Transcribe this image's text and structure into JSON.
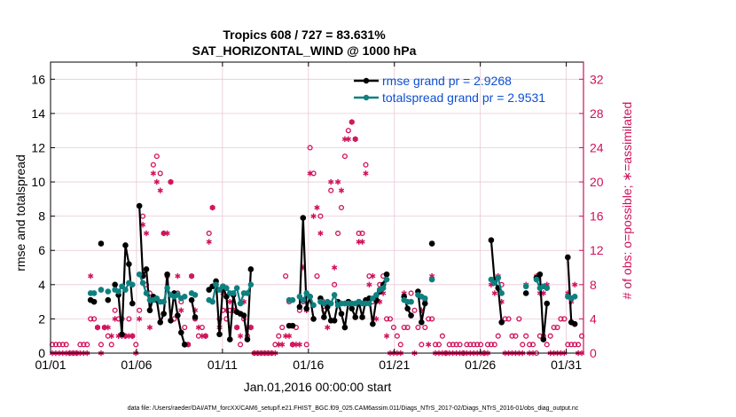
{
  "chart_data": {
    "type": "line",
    "title": "Tropics 608 / 727 = 83.631%",
    "subtitle": "SAT_HORIZONTAL_WIND @ 1000 hPa",
    "xlabel": "Jan.01,2016 00:00:00 start",
    "ylabel": "rmse and totalspread",
    "y2label": "# of obs: o=possible; ∗=assimilated",
    "footer": "data file: /Users/raeder/DAI/ATM_forcXX/CAM6_setup/f.e21.FHIST_BGC.f09_025.CAM6assim.011/Diags_NTrS_2017-02/Diags_NTrS_2016-01/obs_diag_output.nc",
    "x_range": [
      0,
      31
    ],
    "ylim": [
      0,
      17
    ],
    "y2lim": [
      0,
      34
    ],
    "x_ticks": [
      0,
      5,
      10,
      15,
      20,
      25,
      30
    ],
    "x_tick_labels": [
      "01/01",
      "01/06",
      "01/11",
      "01/16",
      "01/21",
      "01/26",
      "01/31"
    ],
    "y_ticks": [
      0,
      2,
      4,
      6,
      8,
      10,
      12,
      14,
      16
    ],
    "y2_ticks": [
      0,
      4,
      8,
      12,
      16,
      20,
      24,
      28,
      32
    ],
    "grid": true,
    "legend_position": "top-right",
    "colors": {
      "rmse": "#000000",
      "spread": "#0f8080",
      "obs": "#d0105a",
      "legend_text": "#0d4fd1",
      "grid": "#e8c8d8"
    },
    "series": [
      {
        "name": "rmse grand pr = 2.9268",
        "key": "rmse",
        "values": [
          null,
          null,
          null,
          null,
          null,
          null,
          null,
          null,
          null,
          null,
          null,
          3.1,
          3.0,
          null,
          6.4,
          null,
          3.1,
          null,
          4.0,
          3.4,
          1.1,
          6.3,
          5.2,
          2.9,
          null,
          8.6,
          4.5,
          4.9,
          2.5,
          3.3,
          3.1,
          1.8,
          2.3,
          4.6,
          1.9,
          3.5,
          2.2,
          1.2,
          0.5,
          null,
          3.1,
          2.1,
          null,
          null,
          null,
          3.7,
          3.9,
          4.2,
          1.1,
          3.9,
          3.3,
          0.8,
          3.4,
          2.4,
          2.3,
          2.2,
          0.8,
          4.9,
          null,
          null,
          null,
          null,
          null,
          null,
          null,
          null,
          null,
          null,
          1.6,
          1.6,
          null,
          2.7,
          7.9,
          2.6,
          3.3,
          2.0,
          null,
          3.2,
          2.1,
          2.7,
          1.9,
          1.9,
          3.0,
          2.3,
          1.5,
          3.0,
          2.6,
          2.1,
          3.0,
          2.1,
          3.1,
          3.2,
          1.7,
          3.1,
          3.6,
          4.0,
          4.6,
          null,
          null,
          null,
          null,
          3.3,
          2.6,
          2.2,
          null,
          3.6,
          1.8,
          2.9,
          null,
          6.4,
          null,
          null,
          null,
          null,
          null,
          null,
          null,
          null,
          null,
          null,
          null,
          null,
          null,
          null,
          null,
          null,
          6.6,
          4.2,
          3.8,
          1.8,
          null,
          null,
          null,
          null,
          null,
          null,
          3.5,
          null,
          null,
          4.4,
          4.6,
          0.8,
          2.9,
          null,
          null,
          null,
          null,
          null,
          5.6,
          1.8,
          1.7,
          null,
          null
        ]
      },
      {
        "name": "totalspread grand pr = 2.9531",
        "key": "spread",
        "values": [
          null,
          null,
          null,
          null,
          null,
          null,
          null,
          null,
          null,
          null,
          null,
          3.5,
          3.5,
          null,
          3.7,
          null,
          3.6,
          null,
          3.7,
          3.6,
          3.9,
          3.7,
          4.1,
          4.0,
          null,
          4.6,
          4.1,
          3.5,
          3.1,
          3.1,
          3.2,
          3.0,
          3.0,
          3.8,
          3.4,
          3.3,
          3.4,
          3.2,
          3.3,
          null,
          3.5,
          3.4,
          null,
          null,
          null,
          3.1,
          3.0,
          4.0,
          3.7,
          3.9,
          3.8,
          3.5,
          3.5,
          3.8,
          2.9,
          3.5,
          3.5,
          4.0,
          null,
          null,
          null,
          null,
          null,
          null,
          null,
          null,
          null,
          null,
          3.1,
          3.1,
          null,
          3.3,
          3.1,
          3.5,
          3.3,
          2.8,
          null,
          3.0,
          2.9,
          3.0,
          2.9,
          3.4,
          2.8,
          2.9,
          2.9,
          2.9,
          2.9,
          2.9,
          3.0,
          2.9,
          2.9,
          2.9,
          3.2,
          3.4,
          3.7,
          3.8,
          4.3,
          null,
          null,
          null,
          null,
          3.1,
          3.0,
          3.0,
          null,
          3.4,
          3.3,
          3.2,
          null,
          4.3,
          null,
          null,
          null,
          null,
          null,
          null,
          null,
          null,
          null,
          null,
          null,
          null,
          null,
          null,
          null,
          null,
          4.3,
          4.1,
          4.4,
          3.5,
          null,
          null,
          null,
          null,
          null,
          null,
          3.9,
          null,
          null,
          4.3,
          3.8,
          3.9,
          3.8,
          null,
          null,
          null,
          null,
          null,
          3.3,
          3.2,
          3.3,
          null,
          null
        ]
      }
    ],
    "obs_possible": [
      1,
      1,
      1,
      1,
      1,
      0,
      0,
      0,
      1,
      1,
      1,
      4,
      4,
      3,
      1,
      3,
      2,
      1,
      5,
      4,
      4,
      2,
      4,
      2,
      1,
      5,
      16,
      8,
      7,
      22,
      23,
      21,
      14,
      9,
      20,
      4,
      7,
      6,
      3,
      1,
      9,
      4,
      2,
      3,
      2,
      14,
      17,
      8,
      4,
      5,
      4,
      5,
      5,
      3,
      1,
      4,
      2,
      3,
      0,
      0,
      0,
      0,
      0,
      0,
      1,
      2,
      3,
      9,
      6,
      1,
      3,
      5,
      6,
      1,
      24,
      21,
      9,
      16,
      5,
      6,
      19,
      8,
      14,
      17,
      23,
      26,
      27,
      25,
      14,
      14,
      22,
      9,
      6,
      6,
      8,
      9,
      4,
      4,
      3,
      2,
      1,
      3,
      3,
      7,
      5,
      3,
      1,
      3,
      4,
      4,
      1,
      1,
      2,
      0,
      1,
      1,
      1,
      1,
      0,
      1,
      1,
      1,
      1,
      1,
      0,
      1,
      1,
      1,
      2,
      8,
      4,
      4,
      2,
      2,
      4,
      1,
      2,
      1,
      1,
      0,
      2,
      2,
      1,
      2,
      3,
      3,
      4,
      4,
      1,
      1,
      1,
      1,
      2
    ],
    "obs_assimilated": [
      0,
      0,
      0,
      0,
      0,
      0,
      0,
      0,
      0,
      0,
      0,
      9,
      6,
      3,
      0,
      3,
      3,
      2,
      4,
      2,
      2,
      2,
      2,
      2,
      0,
      4,
      15,
      14,
      3,
      21,
      20,
      19,
      14,
      14,
      20,
      7,
      9,
      5,
      1,
      1,
      9,
      5,
      3,
      2,
      2,
      13,
      17,
      8,
      3,
      7,
      5,
      6,
      5,
      3,
      2,
      6,
      3,
      3,
      0,
      0,
      0,
      0,
      0,
      0,
      0,
      1,
      1,
      2,
      2,
      1,
      1,
      1,
      10,
      5,
      21,
      16,
      17,
      14,
      6,
      3,
      20,
      10,
      20,
      19,
      25,
      25,
      27,
      25,
      13,
      13,
      21,
      8,
      9,
      4,
      6,
      7,
      2,
      0,
      0,
      0,
      0,
      7,
      6,
      6,
      0,
      7,
      5,
      6,
      1,
      9,
      0,
      0,
      0,
      0,
      0,
      0,
      0,
      0,
      0,
      0,
      0,
      0,
      0,
      0,
      0,
      0,
      8,
      7,
      9,
      6,
      0,
      0,
      0,
      0,
      0,
      0,
      8,
      0,
      0,
      9,
      7,
      7,
      8,
      0,
      0,
      0,
      0,
      0,
      7,
      6,
      8,
      0,
      0
    ]
  }
}
